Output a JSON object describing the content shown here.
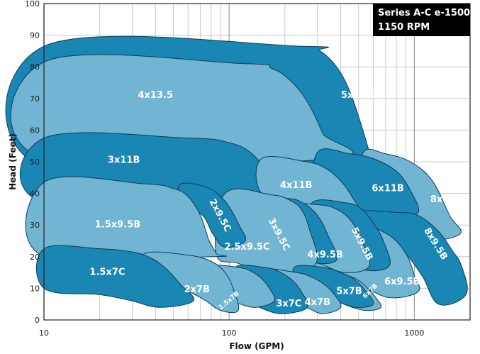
{
  "chart_data": {
    "type": "area",
    "title_lines": [
      "Series A-C e-1500",
      "1150 RPM"
    ],
    "xlabel": "Flow (GPM)",
    "ylabel": "Head (Feet)",
    "x_scale": "log",
    "xlim": [
      10,
      2000
    ],
    "ylim": [
      0,
      100
    ],
    "x_ticks": [
      10,
      100,
      1000
    ],
    "y_ticks": [
      0,
      10,
      20,
      30,
      40,
      50,
      60,
      70,
      80,
      90,
      100
    ],
    "grid": true,
    "colors": {
      "dark": "#1a86b4",
      "light": "#72b5d2",
      "outline": "#0d3b57",
      "grid": "#c8c8c8",
      "legend_bg": "#000000"
    },
    "regions": [
      {
        "name": "5x13.5",
        "tone": "dark",
        "label_at": [
          500,
          71
        ],
        "outline": [
          [
            10,
            86.5
          ],
          [
            250,
            86.5
          ],
          [
            310,
            85
          ],
          [
            380,
            80
          ],
          [
            450,
            72
          ],
          [
            540,
            58
          ],
          [
            620,
            45
          ],
          [
            700,
            33
          ],
          [
            560,
            41
          ],
          [
            450,
            48
          ],
          [
            10,
            48
          ]
        ]
      },
      {
        "name": "4x13.5",
        "tone": "light",
        "label_at": [
          40,
          71
        ],
        "outline": [
          [
            10,
            81.5
          ],
          [
            120,
            81
          ],
          [
            170,
            79.5
          ],
          [
            220,
            75
          ],
          [
            270,
            68
          ],
          [
            320,
            59
          ],
          [
            360,
            51
          ],
          [
            10,
            51
          ]
        ]
      },
      {
        "name": "3x11B",
        "tone": "dark",
        "label_at": [
          27,
          50.5
        ],
        "outline": [
          [
            10,
            57.5
          ],
          [
            60,
            57.5
          ],
          [
            100,
            56
          ],
          [
            130,
            53
          ],
          [
            160,
            47
          ],
          [
            180,
            42
          ],
          [
            200,
            37
          ],
          [
            130,
            37
          ],
          [
            10,
            37
          ]
        ]
      },
      {
        "name": "8x11B",
        "tone": "light",
        "label_at": [
          1490,
          38
        ],
        "outline": [
          [
            530,
            53
          ],
          [
            700,
            52.5
          ],
          [
            950,
            50
          ],
          [
            1250,
            44
          ],
          [
            1550,
            33
          ],
          [
            1750,
            27
          ],
          [
            1000,
            25
          ],
          [
            700,
            30
          ],
          [
            530,
            40
          ]
        ]
      },
      {
        "name": "6x11B",
        "tone": "dark",
        "label_at": [
          720,
          41.5
        ],
        "outline": [
          [
            300,
            53
          ],
          [
            450,
            52.5
          ],
          [
            600,
            51
          ],
          [
            800,
            47
          ],
          [
            950,
            41
          ],
          [
            1050,
            34
          ],
          [
            800,
            33
          ],
          [
            550,
            32
          ],
          [
            300,
            38
          ]
        ]
      },
      {
        "name": "4x11B",
        "tone": "light",
        "label_at": [
          230,
          42.5
        ],
        "outline": [
          [
            150,
            51
          ],
          [
            260,
            50
          ],
          [
            330,
            48
          ],
          [
            400,
            44
          ],
          [
            460,
            39
          ],
          [
            500,
            34
          ],
          [
            350,
            35
          ],
          [
            250,
            36
          ],
          [
            150,
            40
          ]
        ]
      },
      {
        "name": "8x9.5B",
        "tone": "dark",
        "label_at": [
          1300,
          24
        ],
        "outline": [
          [
            480,
            34
          ],
          [
            800,
            34
          ],
          [
            1050,
            33
          ],
          [
            1350,
            28
          ],
          [
            1600,
            22
          ],
          [
            1800,
            17
          ],
          [
            1900,
            8
          ],
          [
            1350,
            5
          ],
          [
            1100,
            14
          ],
          [
            850,
            22
          ],
          [
            600,
            25
          ],
          [
            480,
            28
          ]
        ]
      },
      {
        "name": "6x9.5B",
        "tone": "light",
        "label_at": [
          860,
          12
        ],
        "outline": [
          [
            250,
            30
          ],
          [
            500,
            30
          ],
          [
            720,
            27
          ],
          [
            900,
            21
          ],
          [
            1000,
            14
          ],
          [
            1050,
            9
          ],
          [
            750,
            7
          ],
          [
            550,
            10
          ],
          [
            400,
            14
          ],
          [
            300,
            16
          ],
          [
            250,
            22
          ]
        ]
      },
      {
        "name": "5x9.5B",
        "tone": "dark",
        "label_at": [
          520,
          24
        ],
        "outline": [
          [
            280,
            37
          ],
          [
            430,
            37
          ],
          [
            520,
            35
          ],
          [
            610,
            30
          ],
          [
            680,
            25
          ],
          [
            730,
            17
          ],
          [
            520,
            16
          ],
          [
            380,
            21
          ],
          [
            280,
            26
          ]
        ]
      },
      {
        "name": "4x9.5B",
        "tone": "light",
        "label_at": [
          330,
          20.5
        ],
        "outline": [
          [
            130,
            37
          ],
          [
            290,
            36.5
          ],
          [
            380,
            35
          ],
          [
            460,
            31
          ],
          [
            520,
            25
          ],
          [
            570,
            17
          ],
          [
            420,
            15
          ],
          [
            300,
            18
          ],
          [
            200,
            20
          ],
          [
            130,
            27
          ]
        ]
      },
      {
        "name": "3x9.5C",
        "tone": "dark",
        "label_at": [
          185,
          27
        ],
        "outline": [
          [
            105,
            39
          ],
          [
            200,
            38.5
          ],
          [
            250,
            37
          ],
          [
            300,
            33
          ],
          [
            340,
            27
          ],
          [
            380,
            19
          ],
          [
            280,
            18
          ],
          [
            210,
            20
          ],
          [
            160,
            23
          ],
          [
            105,
            30
          ]
        ]
      },
      {
        "name": "2.5x9.5C",
        "tone": "light",
        "label_at": [
          125,
          23
        ],
        "outline": [
          [
            95,
            40
          ],
          [
            170,
            39.5
          ],
          [
            210,
            38
          ],
          [
            245,
            35
          ],
          [
            270,
            29
          ],
          [
            295,
            18
          ],
          [
            200,
            15
          ],
          [
            150,
            16
          ],
          [
            110,
            18
          ],
          [
            85,
            21
          ]
        ]
      },
      {
        "name": "2x9.5C",
        "tone": "dark",
        "label_at": [
          89,
          33
        ],
        "outline": [
          [
            55,
            43
          ],
          [
            75,
            42
          ],
          [
            90,
            39
          ],
          [
            102,
            35
          ],
          [
            113,
            30
          ],
          [
            122,
            25
          ],
          [
            95,
            23
          ],
          [
            82,
            27
          ],
          [
            72,
            33
          ],
          [
            55,
            38
          ]
        ]
      },
      {
        "name": "1.5x9.5B",
        "tone": "light",
        "label_at": [
          25,
          30
        ],
        "outline": [
          [
            10,
            43.5
          ],
          [
            35,
            43
          ],
          [
            50,
            41.5
          ],
          [
            60,
            39
          ],
          [
            70,
            33
          ],
          [
            78,
            25
          ],
          [
            85,
            21
          ],
          [
            80,
            20
          ],
          [
            10,
            20
          ]
        ]
      },
      {
        "name": "6x7B",
        "tone": "light",
        "label_at": [
          580,
          9
        ],
        "outline": [
          [
            300,
            15
          ],
          [
            430,
            14
          ],
          [
            500,
            12.5
          ],
          [
            560,
            10
          ],
          [
            620,
            7
          ],
          [
            660,
            4
          ],
          [
            560,
            3
          ],
          [
            460,
            4
          ],
          [
            360,
            7
          ],
          [
            300,
            11
          ]
        ]
      },
      {
        "name": "5x7B",
        "tone": "dark",
        "label_at": [
          445,
          9
        ],
        "outline": [
          [
            230,
            17
          ],
          [
            330,
            16.5
          ],
          [
            400,
            15
          ],
          [
            470,
            13
          ],
          [
            540,
            9.5
          ],
          [
            600,
            5
          ],
          [
            480,
            4
          ],
          [
            380,
            6
          ],
          [
            290,
            9
          ],
          [
            230,
            13
          ]
        ]
      },
      {
        "name": "4x7B",
        "tone": "light",
        "label_at": [
          300,
          5.5
        ],
        "outline": [
          [
            150,
            16
          ],
          [
            230,
            15
          ],
          [
            280,
            13.5
          ],
          [
            330,
            11
          ],
          [
            370,
            8
          ],
          [
            400,
            4
          ],
          [
            320,
            2
          ],
          [
            260,
            4
          ],
          [
            200,
            6
          ],
          [
            150,
            11
          ]
        ]
      },
      {
        "name": "3x7C",
        "tone": "dark",
        "label_at": [
          210,
          5
        ],
        "outline": [
          [
            110,
            17
          ],
          [
            160,
            16.5
          ],
          [
            190,
            15
          ],
          [
            220,
            12.5
          ],
          [
            245,
            9
          ],
          [
            265,
            4
          ],
          [
            200,
            2
          ],
          [
            160,
            3
          ],
          [
            130,
            6
          ],
          [
            110,
            12
          ]
        ]
      },
      {
        "name": "2.5x7B",
        "tone": "light",
        "label_at": [
          100,
          6
        ],
        "outline": [
          [
            80,
            17
          ],
          [
            115,
            16.5
          ],
          [
            135,
            15
          ],
          [
            150,
            13
          ],
          [
            165,
            10
          ],
          [
            175,
            6
          ],
          [
            140,
            4
          ],
          [
            115,
            5
          ],
          [
            95,
            7
          ],
          [
            80,
            12
          ]
        ]
      },
      {
        "name": "2x7B",
        "tone": "light",
        "label_at": [
          67,
          9.5
        ],
        "outline": [
          [
            35,
            21
          ],
          [
            60,
            20.5
          ],
          [
            80,
            18.5
          ],
          [
            95,
            15
          ],
          [
            105,
            10
          ],
          [
            112,
            3
          ],
          [
            90,
            3
          ],
          [
            75,
            6
          ],
          [
            60,
            9
          ],
          [
            35,
            14
          ]
        ]
      },
      {
        "name": "1.5x7C",
        "tone": "dark",
        "label_at": [
          22,
          15
        ],
        "outline": [
          [
            10,
            22.5
          ],
          [
            20,
            22.5
          ],
          [
            30,
            21.5
          ],
          [
            38,
            19.5
          ],
          [
            46,
            16
          ],
          [
            55,
            11
          ],
          [
            64,
            6
          ],
          [
            42,
            4
          ],
          [
            30,
            6
          ],
          [
            20,
            8
          ],
          [
            10,
            10
          ]
        ]
      }
    ]
  }
}
